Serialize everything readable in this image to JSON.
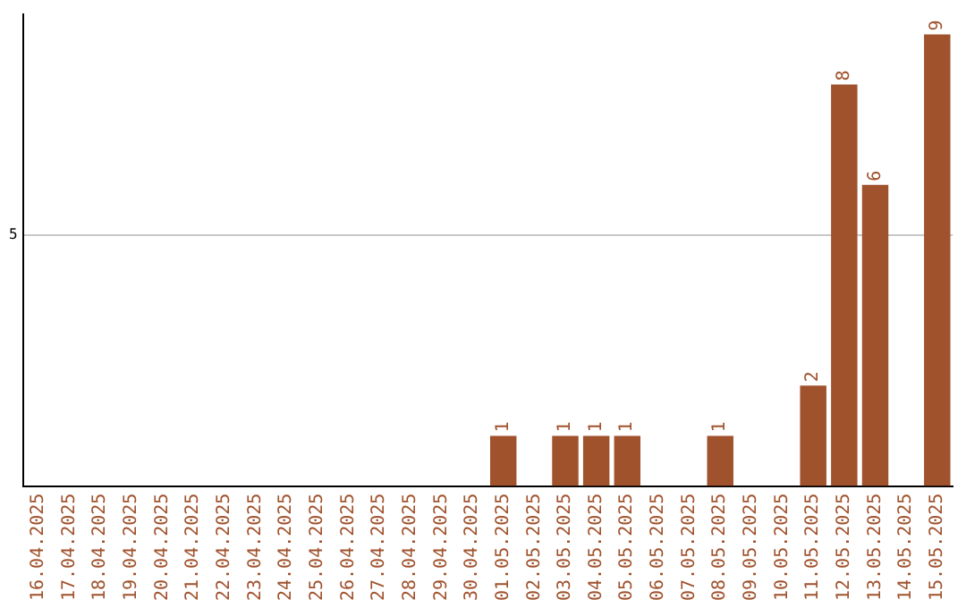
{
  "chart_data": {
    "type": "bar",
    "categories": [
      "16.04.2025",
      "17.04.2025",
      "18.04.2025",
      "19.04.2025",
      "20.04.2025",
      "21.04.2025",
      "22.04.2025",
      "23.04.2025",
      "24.04.2025",
      "25.04.2025",
      "26.04.2025",
      "27.04.2025",
      "28.04.2025",
      "29.04.2025",
      "30.04.2025",
      "01.05.2025",
      "02.05.2025",
      "03.05.2025",
      "04.05.2025",
      "05.05.2025",
      "06.05.2025",
      "07.05.2025",
      "08.05.2025",
      "09.05.2025",
      "10.05.2025",
      "11.05.2025",
      "12.05.2025",
      "13.05.2025",
      "14.05.2025",
      "15.05.2025"
    ],
    "values": [
      null,
      null,
      null,
      null,
      null,
      null,
      null,
      null,
      null,
      null,
      null,
      null,
      null,
      null,
      null,
      1,
      null,
      1,
      1,
      1,
      null,
      null,
      1,
      null,
      null,
      2,
      8,
      6,
      null,
      9
    ],
    "data_labels": true,
    "color": "#a0522d",
    "ylim": [
      0,
      9.4
    ],
    "yticks": [
      5
    ],
    "grid": "y",
    "legend": false
  }
}
